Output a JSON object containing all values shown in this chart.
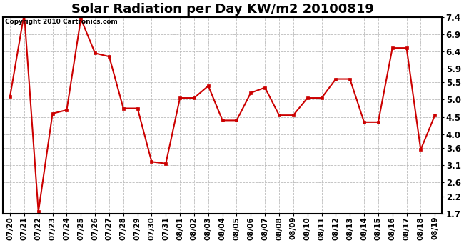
{
  "title": "Solar Radiation per Day KW/m2 20100819",
  "copyright": "Copyright 2010 Cartronics.com",
  "dates": [
    "07/20",
    "07/21",
    "07/22",
    "07/23",
    "07/24",
    "07/25",
    "07/26",
    "07/27",
    "07/28",
    "07/29",
    "07/30",
    "07/31",
    "08/01",
    "08/02",
    "08/03",
    "08/04",
    "08/05",
    "08/06",
    "08/07",
    "08/08",
    "08/09",
    "08/10",
    "08/11",
    "08/12",
    "08/13",
    "08/14",
    "08/15",
    "08/16",
    "08/17",
    "08/18",
    "08/19"
  ],
  "values": [
    5.1,
    7.5,
    1.75,
    4.6,
    4.7,
    7.35,
    6.35,
    6.25,
    4.75,
    4.75,
    3.2,
    3.15,
    5.05,
    5.05,
    5.4,
    4.4,
    4.4,
    5.2,
    5.35,
    4.55,
    4.55,
    5.05,
    5.05,
    5.6,
    5.6,
    4.35,
    4.35,
    6.5,
    6.5,
    3.55,
    4.55
  ],
  "line_color": "#cc0000",
  "marker": "s",
  "marker_size": 2.5,
  "line_width": 1.5,
  "ylim": [
    1.7,
    7.4
  ],
  "yticks": [
    1.7,
    2.2,
    2.6,
    3.1,
    3.6,
    4.0,
    4.5,
    5.0,
    5.5,
    5.9,
    6.4,
    6.9,
    7.4
  ],
  "bg_color": "#ffffff",
  "grid_color": "#bbbbbb",
  "title_fontsize": 13,
  "copyright_fontsize": 6.5,
  "tick_fontsize": 7.5,
  "ytick_fontsize": 8.5
}
